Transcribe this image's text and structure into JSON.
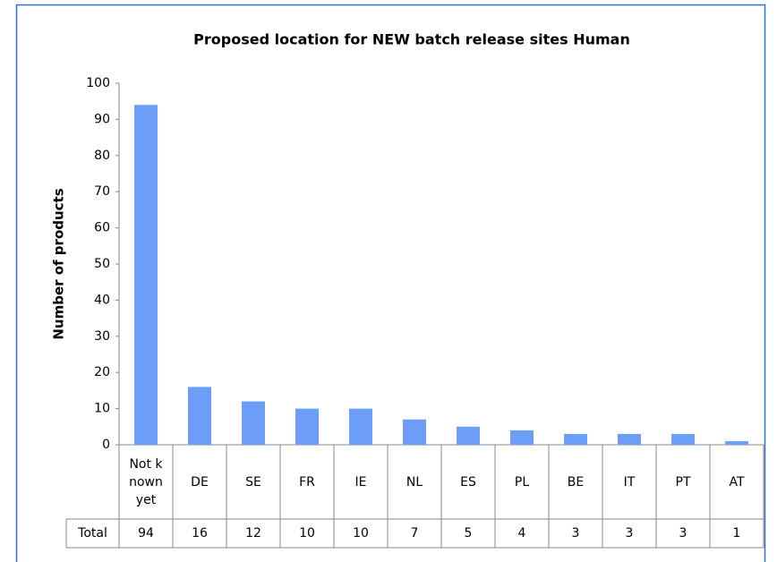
{
  "chart_data": {
    "type": "bar",
    "title": "Proposed location for NEW batch release sites Human",
    "y_label": "Number of products",
    "categories": [
      "Not known yet",
      "DE",
      "SE",
      "FR",
      "IE",
      "NL",
      "ES",
      "PL",
      "BE",
      "IT",
      "PT",
      "AT"
    ],
    "series": [
      {
        "name": "Total",
        "color": "#6c9ef8",
        "values": [
          94,
          16,
          12,
          10,
          10,
          7,
          5,
          4,
          3,
          3,
          3,
          1
        ]
      }
    ],
    "ylim": [
      0,
      100
    ],
    "yticks": [
      0,
      10,
      20,
      30,
      40,
      50,
      60,
      70,
      80,
      90,
      100
    ]
  }
}
